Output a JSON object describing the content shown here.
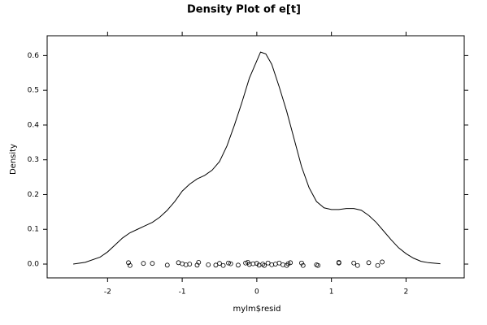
{
  "chart_data": {
    "type": "density",
    "title": "Density Plot of e[t]",
    "x_label": "mylm$resid",
    "y_label": "Density",
    "color": "#000000",
    "curve": {
      "x": [
        -2.46,
        -2.3,
        -2.1,
        -2.0,
        -1.9,
        -1.8,
        -1.7,
        -1.6,
        -1.5,
        -1.4,
        -1.3,
        -1.2,
        -1.1,
        -1.0,
        -0.9,
        -0.8,
        -0.7,
        -0.6,
        -0.5,
        -0.4,
        -0.3,
        -0.2,
        -0.1,
        0.0,
        0.05,
        0.12,
        0.2,
        0.3,
        0.4,
        0.5,
        0.6,
        0.7,
        0.8,
        0.9,
        1.0,
        1.1,
        1.2,
        1.3,
        1.4,
        1.5,
        1.6,
        1.7,
        1.8,
        1.9,
        2.0,
        2.1,
        2.2,
        2.3,
        2.46
      ],
      "values": [
        0.0,
        0.005,
        0.02,
        0.035,
        0.055,
        0.075,
        0.09,
        0.1,
        0.11,
        0.12,
        0.135,
        0.155,
        0.18,
        0.21,
        0.23,
        0.245,
        0.255,
        0.27,
        0.295,
        0.34,
        0.4,
        0.465,
        0.535,
        0.585,
        0.61,
        0.605,
        0.575,
        0.51,
        0.44,
        0.36,
        0.28,
        0.22,
        0.18,
        0.162,
        0.157,
        0.157,
        0.16,
        0.16,
        0.155,
        0.14,
        0.12,
        0.095,
        0.07,
        0.047,
        0.03,
        0.017,
        0.008,
        0.004,
        0.001
      ]
    },
    "points": {
      "x": [
        -1.72,
        -1.7,
        -1.52,
        -1.4,
        -1.2,
        -1.05,
        -1.0,
        -0.95,
        -0.9,
        -0.8,
        -0.78,
        -0.65,
        -0.55,
        -0.5,
        -0.45,
        -0.38,
        -0.35,
        -0.25,
        -0.15,
        -0.12,
        -0.1,
        -0.05,
        0.0,
        0.03,
        0.08,
        0.1,
        0.15,
        0.2,
        0.25,
        0.3,
        0.35,
        0.4,
        0.42,
        0.45,
        0.6,
        0.62,
        0.8,
        0.82,
        1.1,
        1.1,
        1.3,
        1.35,
        1.5,
        1.62,
        1.68
      ],
      "values": [
        0.004,
        -0.004,
        0.002,
        0.002,
        -0.003,
        0.004,
        0.001,
        -0.002,
        0.0,
        -0.003,
        0.005,
        -0.002,
        -0.003,
        0.002,
        -0.004,
        0.003,
        0.001,
        -0.003,
        0.003,
        0.005,
        -0.001,
        0.001,
        0.002,
        -0.003,
        0.0,
        -0.004,
        0.003,
        -0.002,
        0.0,
        0.003,
        -0.002,
        -0.004,
        0.001,
        0.004,
        0.003,
        -0.004,
        -0.002,
        -0.004,
        0.005,
        0.003,
        0.003,
        -0.004,
        0.004,
        -0.004,
        0.006
      ]
    },
    "xlim": [
      -2.81,
      2.78
    ],
    "ylim": [
      -0.0397,
      0.657
    ],
    "xticks": [
      -2,
      -1,
      0,
      1,
      2
    ],
    "yticks": [
      {
        "value": 0,
        "label": "0.0"
      },
      {
        "value": 0.1,
        "label": "0.1"
      },
      {
        "value": 0.2,
        "label": "0.2"
      },
      {
        "value": 0.3,
        "label": "0.3"
      },
      {
        "value": 0.4,
        "label": "0.4"
      },
      {
        "value": 0.5,
        "label": "0.5"
      },
      {
        "value": 0.6,
        "label": "0.6"
      }
    ]
  }
}
